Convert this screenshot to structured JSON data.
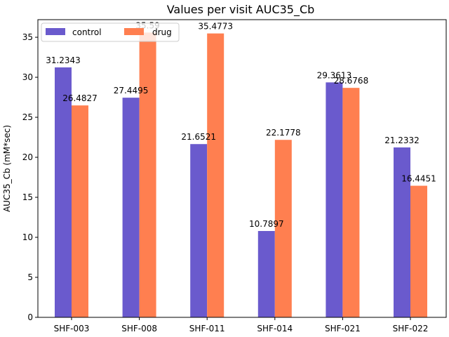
{
  "chart_data": {
    "type": "bar",
    "title": "Values per visit AUC35_Cb",
    "xlabel": "",
    "ylabel": "AUC35_Cb (mM*sec)",
    "ylim": [
      0,
      37.2
    ],
    "yticks": [
      0,
      5,
      10,
      15,
      20,
      25,
      30,
      35
    ],
    "grid": false,
    "legend_position": "top-left",
    "categories": [
      "SHF-003",
      "SHF-008",
      "SHF-011",
      "SHF-014",
      "SHF-021",
      "SHF-022"
    ],
    "series": [
      {
        "name": "control",
        "color": "#6a5acd",
        "values": [
          31.2343,
          27.4495,
          21.6521,
          10.7897,
          29.3613,
          21.2332
        ],
        "labels": [
          "31.2343",
          "27.4495",
          "21.6521",
          "10.7897",
          "29.3613",
          "21.2332"
        ]
      },
      {
        "name": "drug",
        "color": "#ff7f50",
        "values": [
          26.4827,
          35.59,
          35.4773,
          22.1778,
          28.6768,
          16.4451
        ],
        "labels": [
          "26.4827",
          "35.59",
          "35.4773",
          "22.1778",
          "28.6768",
          "16.4451"
        ]
      }
    ]
  }
}
